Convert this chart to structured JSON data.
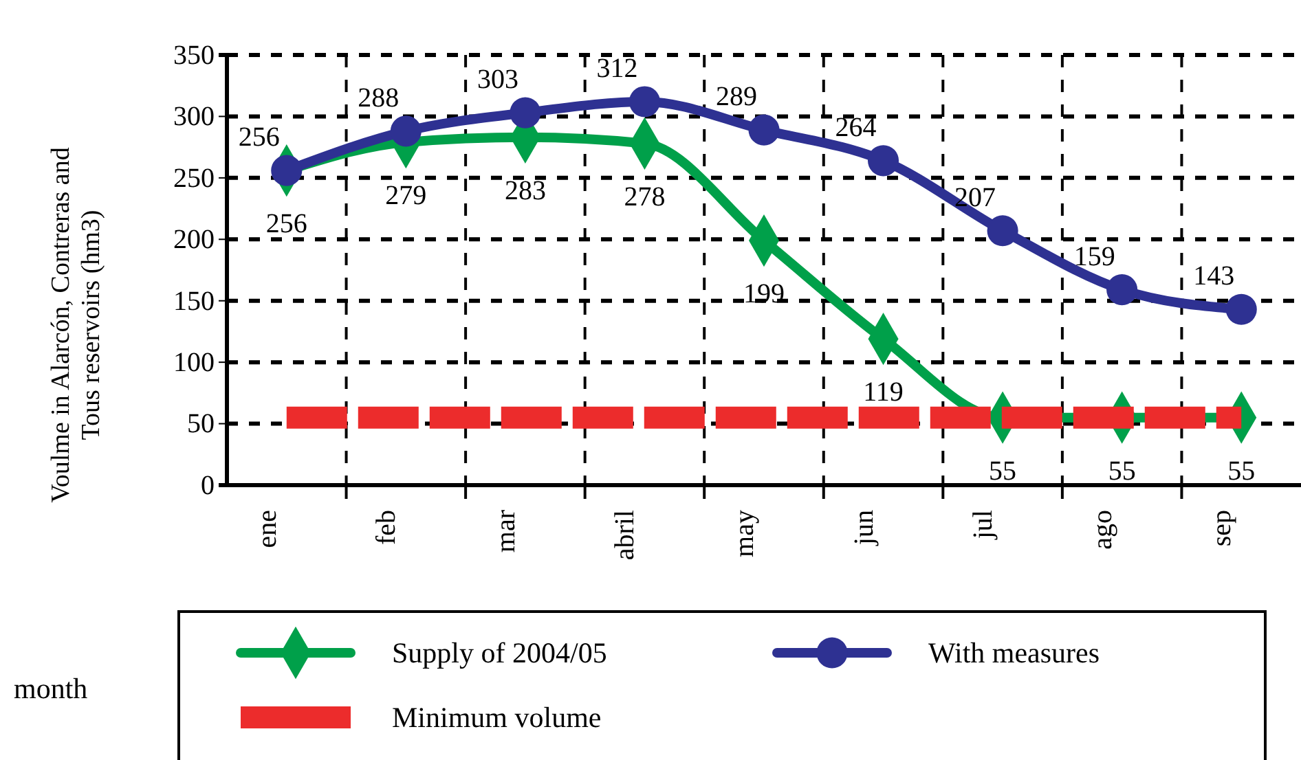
{
  "chart_data": {
    "type": "line",
    "xlabel": "month",
    "ylabel": "Voulme in Alarcón, Contreras and Tous reservoirs (hm3)",
    "categories": [
      "ene",
      "feb",
      "mar",
      "abril",
      "may",
      "jun",
      "jul",
      "ago",
      "sep"
    ],
    "series": [
      {
        "name": "Supply of 2004/05",
        "color": "#00a04a",
        "marker": "diamond",
        "line_style": "solid",
        "values": [
          256,
          279,
          283,
          278,
          199,
          119,
          55,
          55,
          55
        ],
        "value_labels": [
          "256",
          "279",
          "283",
          "278",
          "199",
          "119",
          "55",
          "55",
          "55"
        ]
      },
      {
        "name": "With measures",
        "color": "#2e3192",
        "marker": "circle",
        "line_style": "solid",
        "values": [
          256,
          288,
          303,
          312,
          289,
          264,
          207,
          159,
          143
        ],
        "value_labels": [
          "256",
          "288",
          "303",
          "312",
          "289",
          "264",
          "207",
          "159",
          "143"
        ]
      },
      {
        "name": "Minimum volume",
        "color": "#ec2c2c",
        "marker": "none",
        "line_style": "dashed",
        "values": [
          55,
          55,
          55,
          55,
          55,
          55,
          55,
          55,
          55
        ]
      }
    ],
    "ylim": [
      0,
      350
    ],
    "yticks": [
      0,
      50,
      100,
      150,
      200,
      250,
      300,
      350
    ],
    "grid": true,
    "legend": "bottom"
  }
}
